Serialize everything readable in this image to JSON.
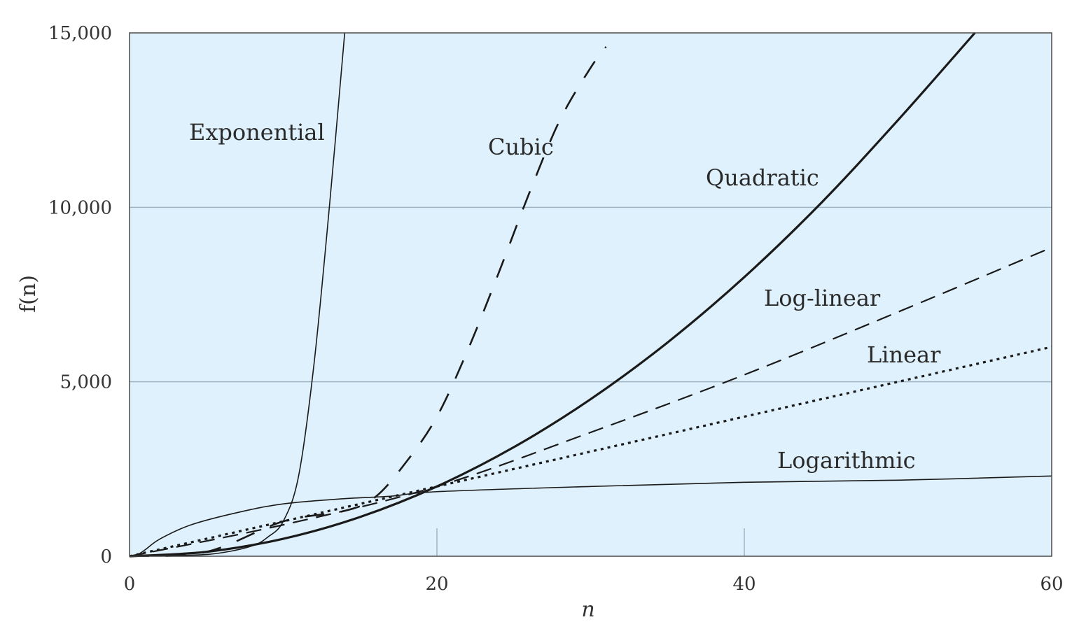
{
  "chart_data": {
    "type": "line",
    "xlabel": "n",
    "ylabel": "f(n)",
    "xlim": [
      0,
      60
    ],
    "ylim": [
      0,
      15000
    ],
    "x_ticks": [
      "0",
      "20",
      "40",
      "60"
    ],
    "y_ticks": [
      "0",
      "5,000",
      "10,000",
      "15,000"
    ],
    "grid": "horizontal",
    "colors": {
      "plot_background": "#dff1fc",
      "gridline": "#9fb5c4",
      "frame": "#4a4a4a",
      "curve": "#1a1a1a"
    },
    "series": [
      {
        "name": "Exponential",
        "style": "thin-solid",
        "x": [
          0,
          4,
          6,
          8,
          9,
          10,
          11,
          12,
          13,
          14
        ],
        "y": [
          0,
          30,
          100,
          300,
          550,
          1000,
          2300,
          5500,
          10000,
          15000
        ]
      },
      {
        "name": "Cubic",
        "style": "long-dash",
        "x": [
          0,
          5,
          10,
          14,
          16,
          18,
          20,
          22,
          24,
          26,
          28,
          30,
          31
        ],
        "y": [
          0,
          125,
          1000,
          1300,
          1700,
          2700,
          4000,
          5900,
          8100,
          10400,
          12500,
          14000,
          14600
        ]
      },
      {
        "name": "Quadratic",
        "style": "thick-solid",
        "x": [
          0,
          5,
          10,
          15,
          20,
          25,
          30,
          35,
          40,
          45,
          50,
          55
        ],
        "y": [
          0,
          125,
          500,
          1125,
          2000,
          3125,
          4500,
          6125,
          8000,
          10125,
          12500,
          15000
        ]
      },
      {
        "name": "Log-linear",
        "style": "medium-dash",
        "x": [
          0,
          10,
          20,
          30,
          40,
          50,
          60
        ],
        "y": [
          0,
          900,
          2000,
          3550,
          5200,
          7000,
          8850
        ]
      },
      {
        "name": "Linear",
        "style": "dotted",
        "x": [
          0,
          60
        ],
        "y": [
          0,
          6000
        ]
      },
      {
        "name": "Logarithmic",
        "style": "thin-solid",
        "x": [
          0,
          0.5,
          1,
          2,
          4,
          7,
          10,
          14,
          17,
          20,
          30,
          40,
          50,
          60
        ],
        "y": [
          0,
          40,
          180,
          500,
          900,
          1250,
          1500,
          1650,
          1720,
          1850,
          2000,
          2120,
          2180,
          2300
        ]
      }
    ]
  }
}
